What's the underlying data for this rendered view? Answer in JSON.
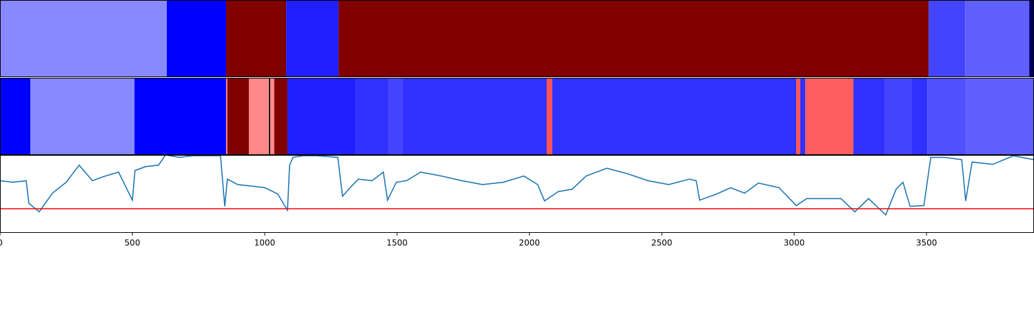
{
  "chart_data": [
    {
      "type": "segments",
      "bins": [
        0,
        630,
        854,
        1081,
        1279,
        3508,
        3646,
        3888,
        3906
      ],
      "colors": [
        "#8888ff",
        "#0000ff",
        "#800000",
        "#2020ff",
        "#800000",
        "#4444ff",
        "#6060ff",
        "#000060"
      ],
      "xlim": [
        0,
        3906
      ]
    },
    {
      "type": "segments",
      "bins": [
        0,
        115,
        508,
        854,
        859,
        940,
        1016,
        1021,
        1036,
        1086,
        1344,
        1466,
        1521,
        2065,
        2086,
        3008,
        3023,
        3042,
        3224,
        3341,
        3445,
        3503,
        3648,
        3906
      ],
      "colors": [
        "#0000ff",
        "#8888ff",
        "#0000ff",
        "#ff8888",
        "#800000",
        "#ff8888",
        "#000000",
        "#ff8888",
        "#800000",
        "#2020ff",
        "#3030ff",
        "#4444ff",
        "#3030ff",
        "#ff5555",
        "#3030ff",
        "#ff5555",
        "#3030ff",
        "#ff5e5e",
        "#3030ff",
        "#4444ff",
        "#3030ff",
        "#5050ff",
        "#6060ff"
      ],
      "xlim": [
        0,
        3906
      ]
    },
    {
      "type": "line",
      "x": [
        0,
        49,
        99,
        109,
        148,
        198,
        250,
        299,
        349,
        398,
        448,
        500,
        510,
        549,
        599,
        625,
        677,
        729,
        781,
        833,
        849,
        859,
        898,
        951,
        1000,
        1049,
        1086,
        1094,
        1107,
        1146,
        1198,
        1276,
        1294,
        1328,
        1354,
        1406,
        1448,
        1464,
        1497,
        1536,
        1589,
        1667,
        1745,
        1823,
        1901,
        1979,
        2031,
        2057,
        2109,
        2161,
        2214,
        2292,
        2370,
        2448,
        2526,
        2604,
        2630,
        2643,
        2708,
        2760,
        2813,
        2865,
        2943,
        3008,
        3047,
        3099,
        3177,
        3229,
        3281,
        3346,
        3385,
        3411,
        3438,
        3490,
        3516,
        3568,
        3633,
        3648,
        3672,
        3750,
        3828,
        3906
      ],
      "values": [
        0.67,
        0.65,
        0.67,
        0.38,
        0.27,
        0.51,
        0.65,
        0.87,
        0.67,
        0.73,
        0.78,
        0.42,
        0.8,
        0.85,
        0.87,
        1.0,
        0.97,
        0.99,
        0.99,
        0.99,
        0.34,
        0.69,
        0.62,
        0.6,
        0.58,
        0.5,
        0.29,
        0.87,
        0.97,
        0.99,
        0.99,
        0.97,
        0.47,
        0.6,
        0.69,
        0.67,
        0.78,
        0.42,
        0.65,
        0.67,
        0.78,
        0.73,
        0.67,
        0.62,
        0.65,
        0.73,
        0.62,
        0.41,
        0.53,
        0.56,
        0.73,
        0.83,
        0.76,
        0.67,
        0.62,
        0.69,
        0.67,
        0.42,
        0.5,
        0.58,
        0.51,
        0.64,
        0.58,
        0.35,
        0.44,
        0.44,
        0.44,
        0.27,
        0.44,
        0.23,
        0.56,
        0.65,
        0.34,
        0.35,
        0.97,
        0.97,
        0.94,
        0.41,
        0.91,
        0.88,
        0.99,
        0.94
      ],
      "color": "#1f77b4",
      "threshold": 0.31,
      "threshold_color": "#ff0000",
      "xlim": [
        0,
        3906
      ],
      "ylim": [
        0,
        1
      ],
      "xticks": [
        0,
        500,
        1000,
        1500,
        2000,
        2500,
        3000,
        3500
      ]
    }
  ]
}
